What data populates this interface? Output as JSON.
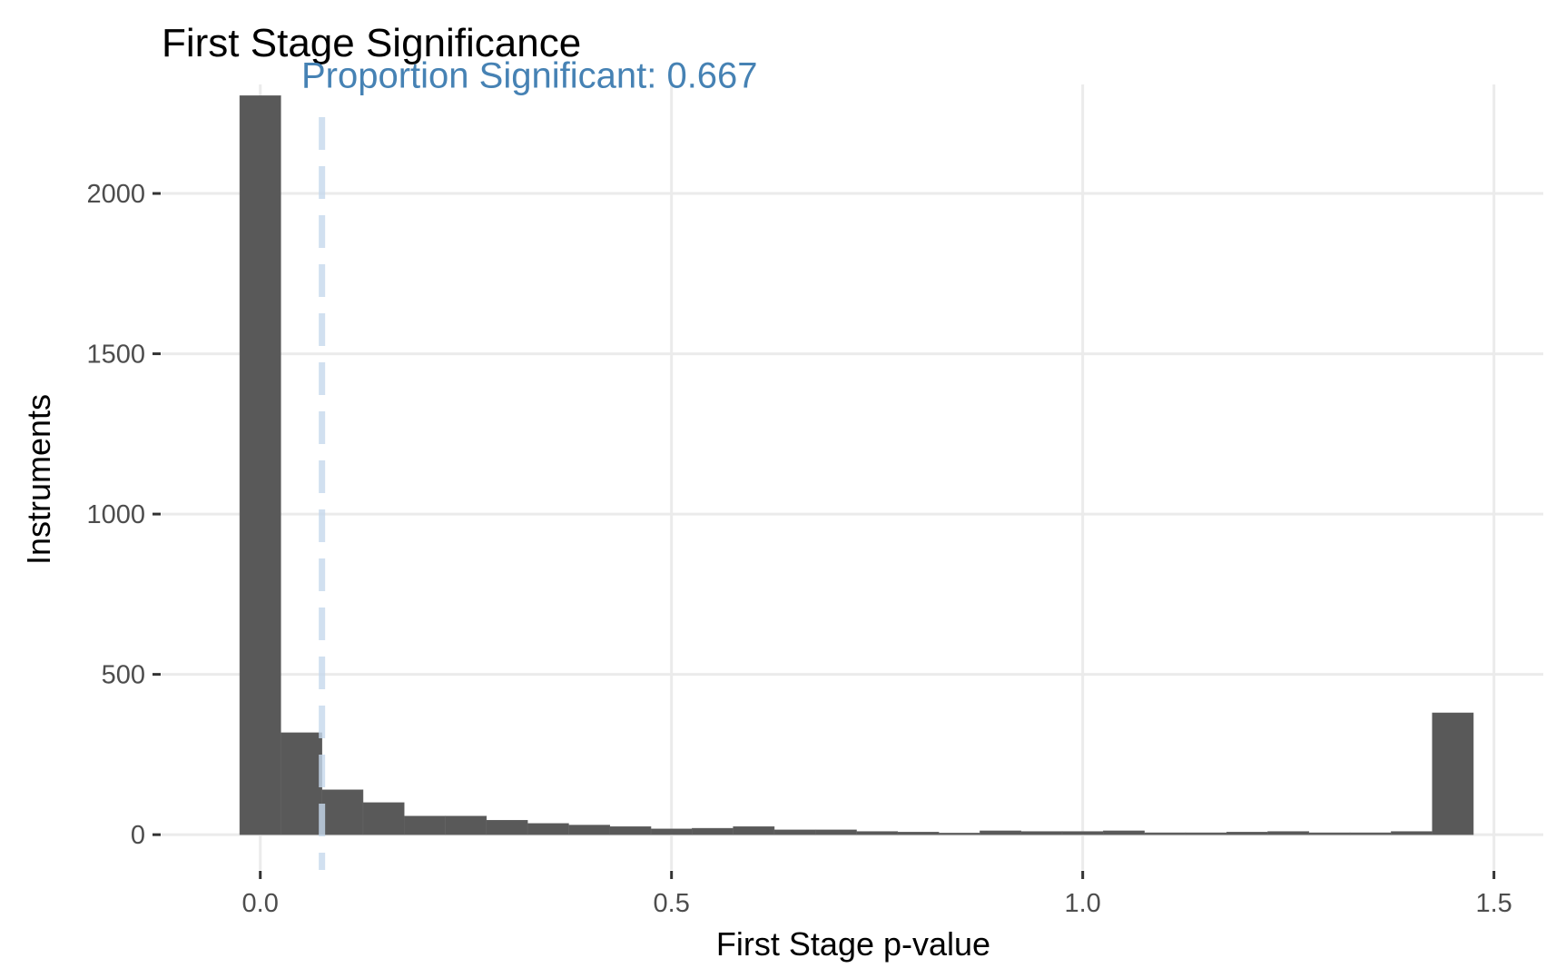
{
  "chart_data": {
    "type": "bar",
    "title": "First Stage Significance",
    "xlabel": "First Stage p-value",
    "ylabel": "Instruments",
    "xlim": [
      -0.12,
      1.56
    ],
    "ylim": [
      -110,
      2340
    ],
    "x_ticks": [
      0.0,
      0.5,
      1.0,
      1.5
    ],
    "x_tick_labels": [
      "0.0",
      "0.5",
      "1.0",
      "1.5"
    ],
    "y_ticks": [
      0,
      500,
      1000,
      1500,
      2000
    ],
    "y_tick_labels": [
      "0",
      "500",
      "1000",
      "1500",
      "2000"
    ],
    "grid": true,
    "bin_width": 0.05,
    "bins": [
      {
        "x": 0.0,
        "count": 2305
      },
      {
        "x": 0.05,
        "count": 318
      },
      {
        "x": 0.1,
        "count": 140
      },
      {
        "x": 0.15,
        "count": 100
      },
      {
        "x": 0.2,
        "count": 58
      },
      {
        "x": 0.25,
        "count": 58
      },
      {
        "x": 0.3,
        "count": 45
      },
      {
        "x": 0.35,
        "count": 35
      },
      {
        "x": 0.4,
        "count": 30
      },
      {
        "x": 0.45,
        "count": 25
      },
      {
        "x": 0.5,
        "count": 18
      },
      {
        "x": 0.55,
        "count": 20
      },
      {
        "x": 0.6,
        "count": 25
      },
      {
        "x": 0.65,
        "count": 15
      },
      {
        "x": 0.7,
        "count": 15
      },
      {
        "x": 0.75,
        "count": 10
      },
      {
        "x": 0.8,
        "count": 8
      },
      {
        "x": 0.85,
        "count": 5
      },
      {
        "x": 0.9,
        "count": 12
      },
      {
        "x": 0.95,
        "count": 10
      },
      {
        "x": 1.0,
        "count": 10
      },
      {
        "x": 1.05,
        "count": 12
      },
      {
        "x": 1.1,
        "count": 6
      },
      {
        "x": 1.15,
        "count": 6
      },
      {
        "x": 1.2,
        "count": 8
      },
      {
        "x": 1.25,
        "count": 10
      },
      {
        "x": 1.3,
        "count": 6
      },
      {
        "x": 1.35,
        "count": 6
      },
      {
        "x": 1.4,
        "count": 10
      },
      {
        "x": 1.45,
        "count": 380
      }
    ],
    "reference_line": {
      "x": 0.075,
      "style": "dashed",
      "color": "#c6d8ec"
    },
    "annotation": {
      "text": "Proportion Significant: 0.667",
      "x": 0.05,
      "y": 2370,
      "color": "#4682b4"
    },
    "bar_color": "#595959",
    "grid_color": "#ebebeb"
  }
}
